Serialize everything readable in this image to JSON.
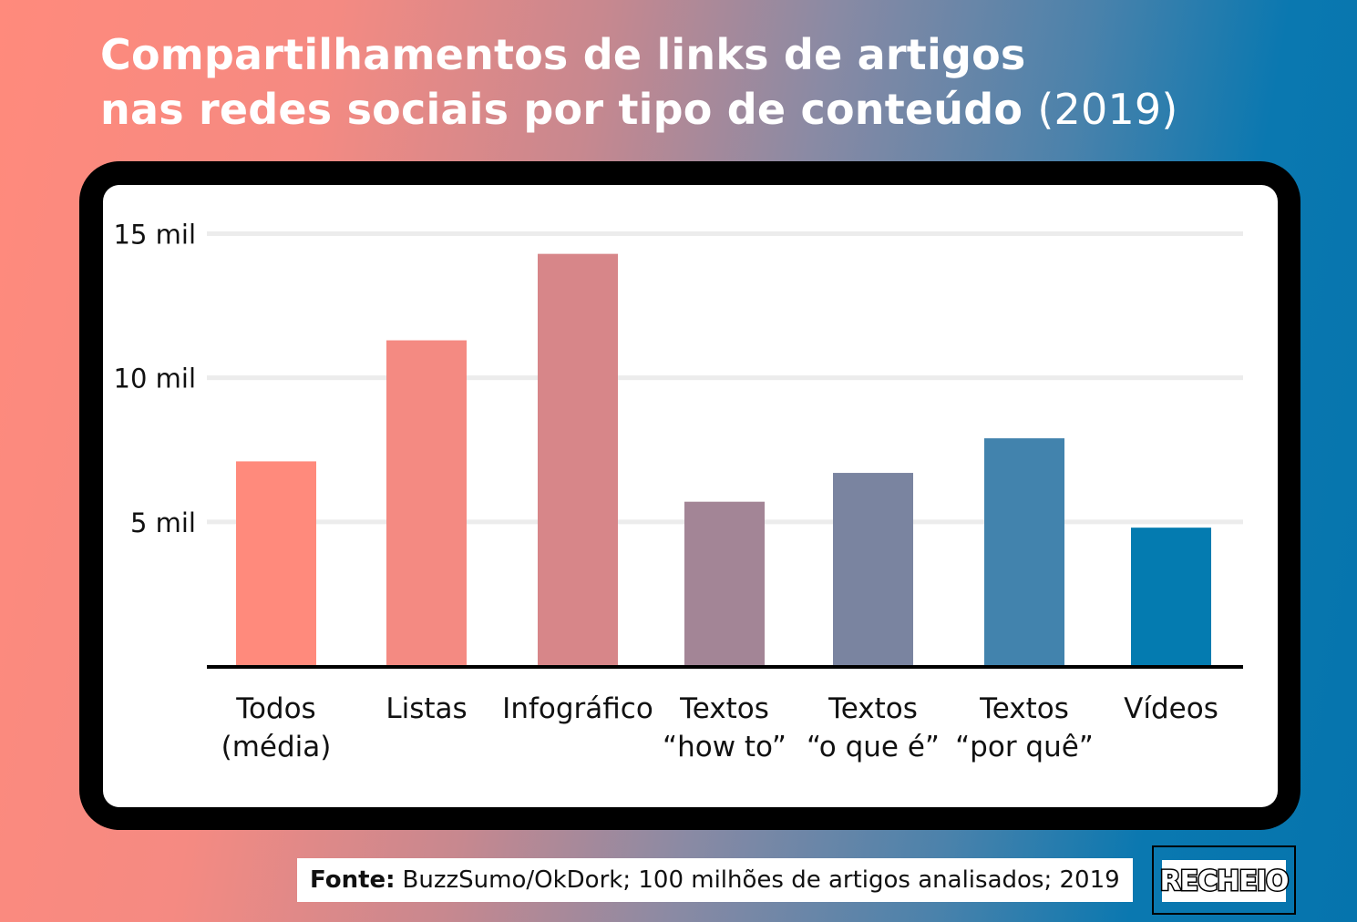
{
  "title": {
    "line1": "Compartilhamentos de links de artigos",
    "line2": "nas redes sociais por tipo de conteúdo",
    "year": "(2019)"
  },
  "footer": {
    "source_label": "Fonte:",
    "source_text": "BuzzSumo/OkDork; 100 milhões de artigos analisados; 2019",
    "logo": "RECHEIO"
  },
  "colors": {
    "bar_start": "#ff8a7c",
    "bar_end": "#047bb0",
    "grid": "#ececec",
    "axis": "#000000"
  },
  "chart_data": {
    "type": "bar",
    "categories": [
      [
        "Todos",
        "(média)"
      ],
      [
        "Listas"
      ],
      [
        "Infográfico"
      ],
      [
        "Textos",
        "“how to”"
      ],
      [
        "Textos",
        "“o que é”"
      ],
      [
        "Textos",
        "“por quê”"
      ],
      [
        "Vídeos"
      ]
    ],
    "values": [
      7100,
      11300,
      14300,
      5700,
      6700,
      7900,
      4800
    ],
    "bar_colors": [
      "#ff8a7c",
      "#f48a82",
      "#d78689",
      "#a38596",
      "#7a84a0",
      "#4283ad",
      "#047bb0"
    ],
    "yticks": [
      {
        "value": 5000,
        "label": "5 mil"
      },
      {
        "value": 10000,
        "label": "10 mil"
      },
      {
        "value": 15000,
        "label": "15 mil"
      }
    ],
    "ylim": [
      0,
      15000
    ],
    "grid": true
  }
}
